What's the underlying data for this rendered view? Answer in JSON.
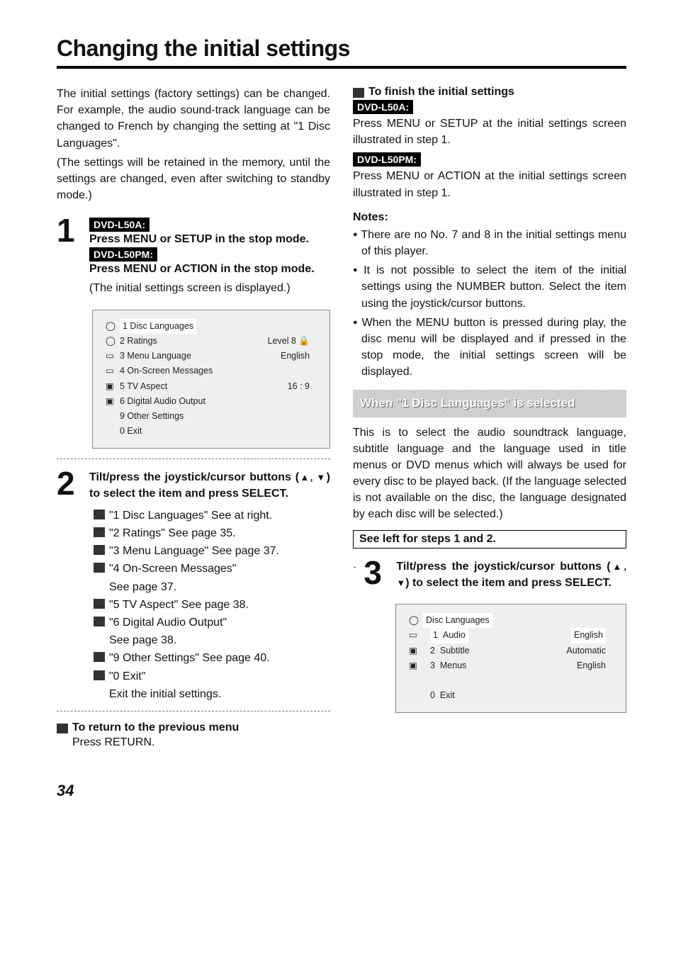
{
  "page": {
    "title": "Changing the initial settings",
    "page_number": "34"
  },
  "left": {
    "intro1": "The initial settings (factory settings) can be changed. For example, the audio sound-track language can be changed to French by changing the setting at \"1 Disc Languages\".",
    "intro2": "(The settings will be retained in the memory, until the settings are changed, even after switching to standby mode.)",
    "step1": {
      "badge_a": "DVD-L50A:",
      "line_a": "Press MENU or SETUP in the stop mode.",
      "badge_b": "DVD-L50PM:",
      "line_b": "Press MENU or ACTION in the stop mode.",
      "paren": "(The initial settings screen is displayed.)"
    },
    "screen1": {
      "rows": [
        {
          "ico": "◯",
          "label": "1 Disc Languages",
          "val": "",
          "sel": true
        },
        {
          "ico": "◯",
          "label": "2 Ratings",
          "val": "Level    8 🔒"
        },
        {
          "ico": "▭",
          "label": "3 Menu Language",
          "val": "English"
        },
        {
          "ico": "▭",
          "label": "4 On-Screen Messages",
          "val": ""
        },
        {
          "ico": "▣",
          "label": "5 TV Aspect",
          "val": "16 : 9"
        },
        {
          "ico": "▣",
          "label": "6 Digital Audio Output",
          "val": ""
        },
        {
          "ico": "",
          "label": "",
          "val": ""
        },
        {
          "ico": "",
          "label": "9 Other Settings",
          "val": ""
        },
        {
          "ico": "",
          "label": "0 Exit",
          "val": ""
        }
      ]
    },
    "step2": {
      "title1": "Tilt/press the joystick/cursor buttons (",
      "tri": "▲, ▼",
      "title2": ") to select the item and press SELECT.",
      "refs": [
        "\"1 Disc Languages\" See at right.",
        "\"2 Ratings\" See page 35.",
        "\"3 Menu Language\" See page 37.",
        "\"4 On-Screen Messages\"",
        "See page 37.",
        "\"5 TV Aspect\" See page 38.",
        "\"6 Digital Audio Output\"",
        "See page 38.",
        "\"9 Other Settings\" See page 40.",
        "\"0 Exit\"",
        "Exit the initial settings."
      ],
      "ref_icon_flags": [
        true,
        true,
        true,
        true,
        false,
        true,
        true,
        false,
        true,
        true,
        false
      ]
    },
    "return": {
      "title": "To return to the previous menu",
      "body": "Press RETURN."
    }
  },
  "right": {
    "finish": {
      "title": "To finish the initial settings",
      "badge_a": "DVD-L50A:",
      "line_a": "Press MENU or SETUP at the initial settings screen illustrated in step 1.",
      "badge_b": "DVD-L50PM:",
      "line_b": "Press MENU or ACTION at the initial settings screen illustrated in step 1."
    },
    "notes": {
      "head": "Notes:",
      "items": [
        "There are no No. 7 and 8 in the initial settings menu of this player.",
        "It is not possible to select the item of the initial settings using the NUMBER button. Select the item using the joystick/cursor buttons.",
        "When the MENU button is pressed during play, the disc menu will be displayed and if pressed in the stop mode, the initial settings screen will be displayed."
      ]
    },
    "section_title": "When \"1 Disc Languages\" is selected",
    "section_body": "This is to select the audio soundtrack language, subtitle language and the language used in title menus or DVD menus which will always be used for every disc to be played back. (If the language selected is not available on the disc, the language designated by each disc will be selected.)",
    "see_left": "See left for steps 1 and 2.",
    "step3": {
      "title1": "Tilt/press the joystick/cursor buttons (",
      "tri": "▲, ▼",
      "title2": ") to select the item and press SELECT."
    },
    "screen2": {
      "head": "Disc Languages",
      "rows": [
        {
          "n": "1",
          "label": "Audio",
          "val": "English",
          "sel": true
        },
        {
          "n": "2",
          "label": "Subtitle",
          "val": "Automatic"
        },
        {
          "n": "3",
          "label": "Menus",
          "val": "English"
        },
        {
          "n": "",
          "label": "",
          "val": ""
        },
        {
          "n": "0",
          "label": "Exit",
          "val": ""
        }
      ]
    }
  }
}
